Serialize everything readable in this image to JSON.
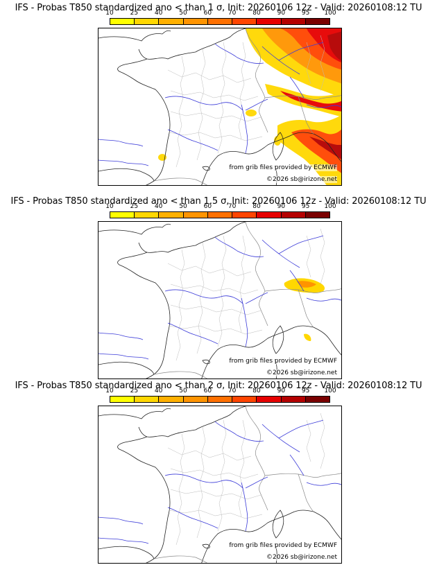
{
  "colorbar": {
    "ticks": [
      "10",
      "25",
      "40",
      "50",
      "60",
      "70",
      "80",
      "90",
      "95",
      "100"
    ],
    "colors": [
      "#ffff00",
      "#ffd700",
      "#ffb000",
      "#ff9400",
      "#ff7000",
      "#ff4500",
      "#e60000",
      "#b40000",
      "#7a0000"
    ]
  },
  "credits": {
    "source": "from grib files provided by ECMWF",
    "copyright": "©2026 sb@irizone.net"
  },
  "panels": [
    {
      "title": "IFS - Probas T850  standardized ano < than 1 σ, Init: 20260106 12z - Valid: 20260108:12 TU",
      "threshold_sigma": 1
    },
    {
      "title": "IFS - Probas T850  standardized ano < than 1.5 σ, Init: 20260106 12z - Valid: 20260108:12 TU",
      "threshold_sigma": 1.5
    },
    {
      "title": "IFS - Probas T850  standardized ano < than 2 σ, Init: 20260106 12z - Valid: 20260108:12 TU",
      "threshold_sigma": 2
    }
  ]
}
